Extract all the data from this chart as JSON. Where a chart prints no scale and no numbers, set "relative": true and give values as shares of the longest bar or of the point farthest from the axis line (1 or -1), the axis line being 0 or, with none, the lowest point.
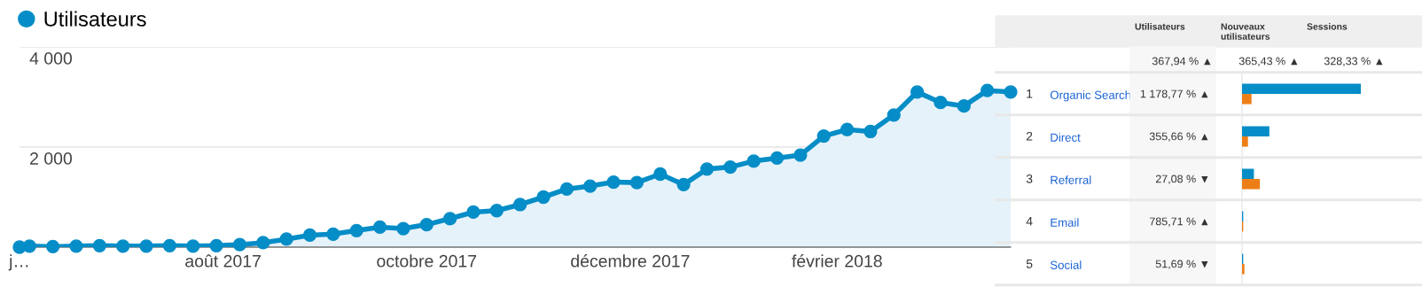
{
  "chart_data": [
    {
      "type": "area",
      "x": [
        "2017-06-01",
        "2017-06-04",
        "2017-06-11",
        "2017-06-18",
        "2017-06-25",
        "2017-07-02",
        "2017-07-09",
        "2017-07-16",
        "2017-07-23",
        "2017-07-30",
        "2017-08-06",
        "2017-08-13",
        "2017-08-20",
        "2017-08-27",
        "2017-09-03",
        "2017-09-10",
        "2017-09-17",
        "2017-09-24",
        "2017-10-01",
        "2017-10-08",
        "2017-10-15",
        "2017-10-22",
        "2017-10-29",
        "2017-11-05",
        "2017-11-12",
        "2017-11-19",
        "2017-11-26",
        "2017-12-03",
        "2017-12-10",
        "2017-12-17",
        "2017-12-24",
        "2017-12-31",
        "2018-01-07",
        "2018-01-14",
        "2018-01-21",
        "2018-01-28",
        "2018-02-04",
        "2018-02-11",
        "2018-02-18",
        "2018-02-25",
        "2018-03-04",
        "2018-03-11",
        "2018-03-18",
        "2018-03-25"
      ],
      "series": [
        {
          "name": "Utilisateurs",
          "color": "#058dc7",
          "values": [
            0,
            20,
            10,
            20,
            30,
            20,
            20,
            30,
            20,
            30,
            50,
            90,
            160,
            240,
            260,
            330,
            400,
            370,
            450,
            570,
            700,
            730,
            850,
            1000,
            1160,
            1220,
            1300,
            1290,
            1460,
            1250,
            1560,
            1600,
            1720,
            1780,
            1840,
            2220,
            2350,
            2310,
            2640,
            3100,
            2890,
            2820,
            3130,
            3100
          ]
        }
      ],
      "xlim": [
        "2017-06-01",
        "2018-03-25"
      ],
      "xticks": [
        {
          "value": "2017-06-01",
          "label": "j…"
        },
        {
          "value": "2017-08-01",
          "label": "août 2017"
        },
        {
          "value": "2017-10-01",
          "label": "octobre 2017"
        },
        {
          "value": "2017-12-01",
          "label": "décembre 2017"
        },
        {
          "value": "2018-02-01",
          "label": "février 2018"
        }
      ],
      "ylim": [
        0,
        4000
      ],
      "yticks": [
        {
          "value": 2000,
          "label": "2 000"
        },
        {
          "value": 4000,
          "label": "4 000"
        }
      ],
      "grid": "y",
      "legend": "top left",
      "marker": "circle",
      "line_style": "solid"
    },
    {
      "type": "bar",
      "orientation": "horizontal",
      "relative": true,
      "categories": [
        "Organic Search",
        "Direct",
        "Referral",
        "Email",
        "Social"
      ],
      "series": [
        {
          "color": "#058dc7",
          "values": [
            1,
            0.23,
            0.1,
            0.01,
            0.01
          ]
        },
        {
          "color": "#ed7e17",
          "values": [
            0.08,
            0.05,
            0.15,
            0.01,
            0.02
          ]
        }
      ],
      "annotations": [
        "Utilisateurs",
        "Nouveaux\nutilisateurs",
        "Sessions",
        "367,94 % ▲",
        "365,43 % ▲",
        "328,33 % ▲",
        "1",
        "1 178,77 % ▲",
        "2",
        "355,66 % ▲",
        "3",
        "27,08 % ▼",
        "4",
        "785,71 % ▲",
        "5",
        "51,69 % ▼"
      ]
    }
  ]
}
